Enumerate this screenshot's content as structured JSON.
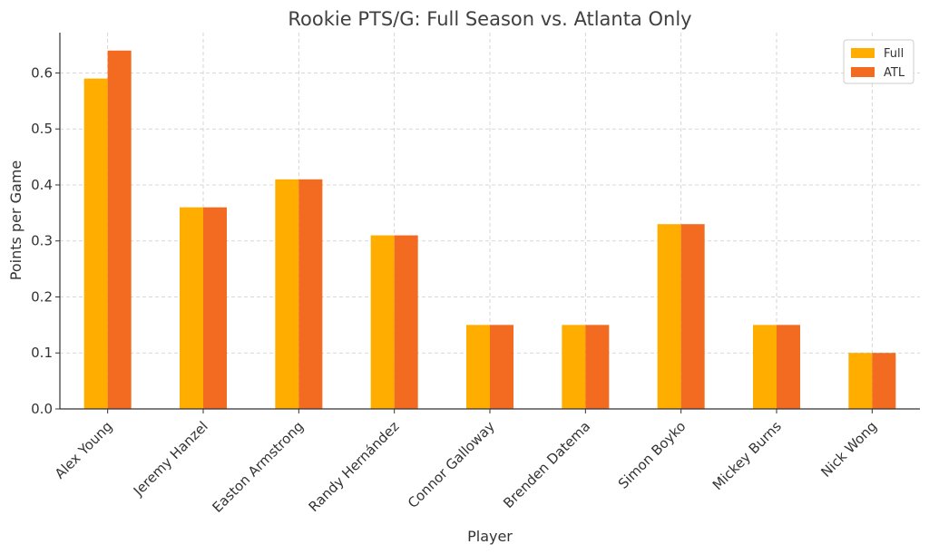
{
  "chart_data": {
    "type": "bar",
    "title": "Rookie PTS/G: Full Season vs. Atlanta Only",
    "xlabel": "Player",
    "ylabel": "Points per Game",
    "categories": [
      "Alex Young",
      "Jeremy Hanzel",
      "Easton Armstrong",
      "Randy Hernández",
      "Connor Galloway",
      "Brenden Datema",
      "Simon Boyko",
      "Mickey Burns",
      "Nick Wong"
    ],
    "series": [
      {
        "name": "Full",
        "color": "#FFAE00",
        "values": [
          0.59,
          0.36,
          0.41,
          0.31,
          0.15,
          0.15,
          0.33,
          0.15,
          0.1
        ]
      },
      {
        "name": "ATL",
        "color": "#F26B21",
        "values": [
          0.64,
          0.36,
          0.41,
          0.31,
          0.15,
          0.15,
          0.33,
          0.15,
          0.1
        ]
      }
    ],
    "ylim": [
      0,
      0.672
    ],
    "yticks": [
      "0.0",
      "0.1",
      "0.2",
      "0.3",
      "0.4",
      "0.5",
      "0.6"
    ],
    "grid": true,
    "legend_position": "top-right"
  }
}
